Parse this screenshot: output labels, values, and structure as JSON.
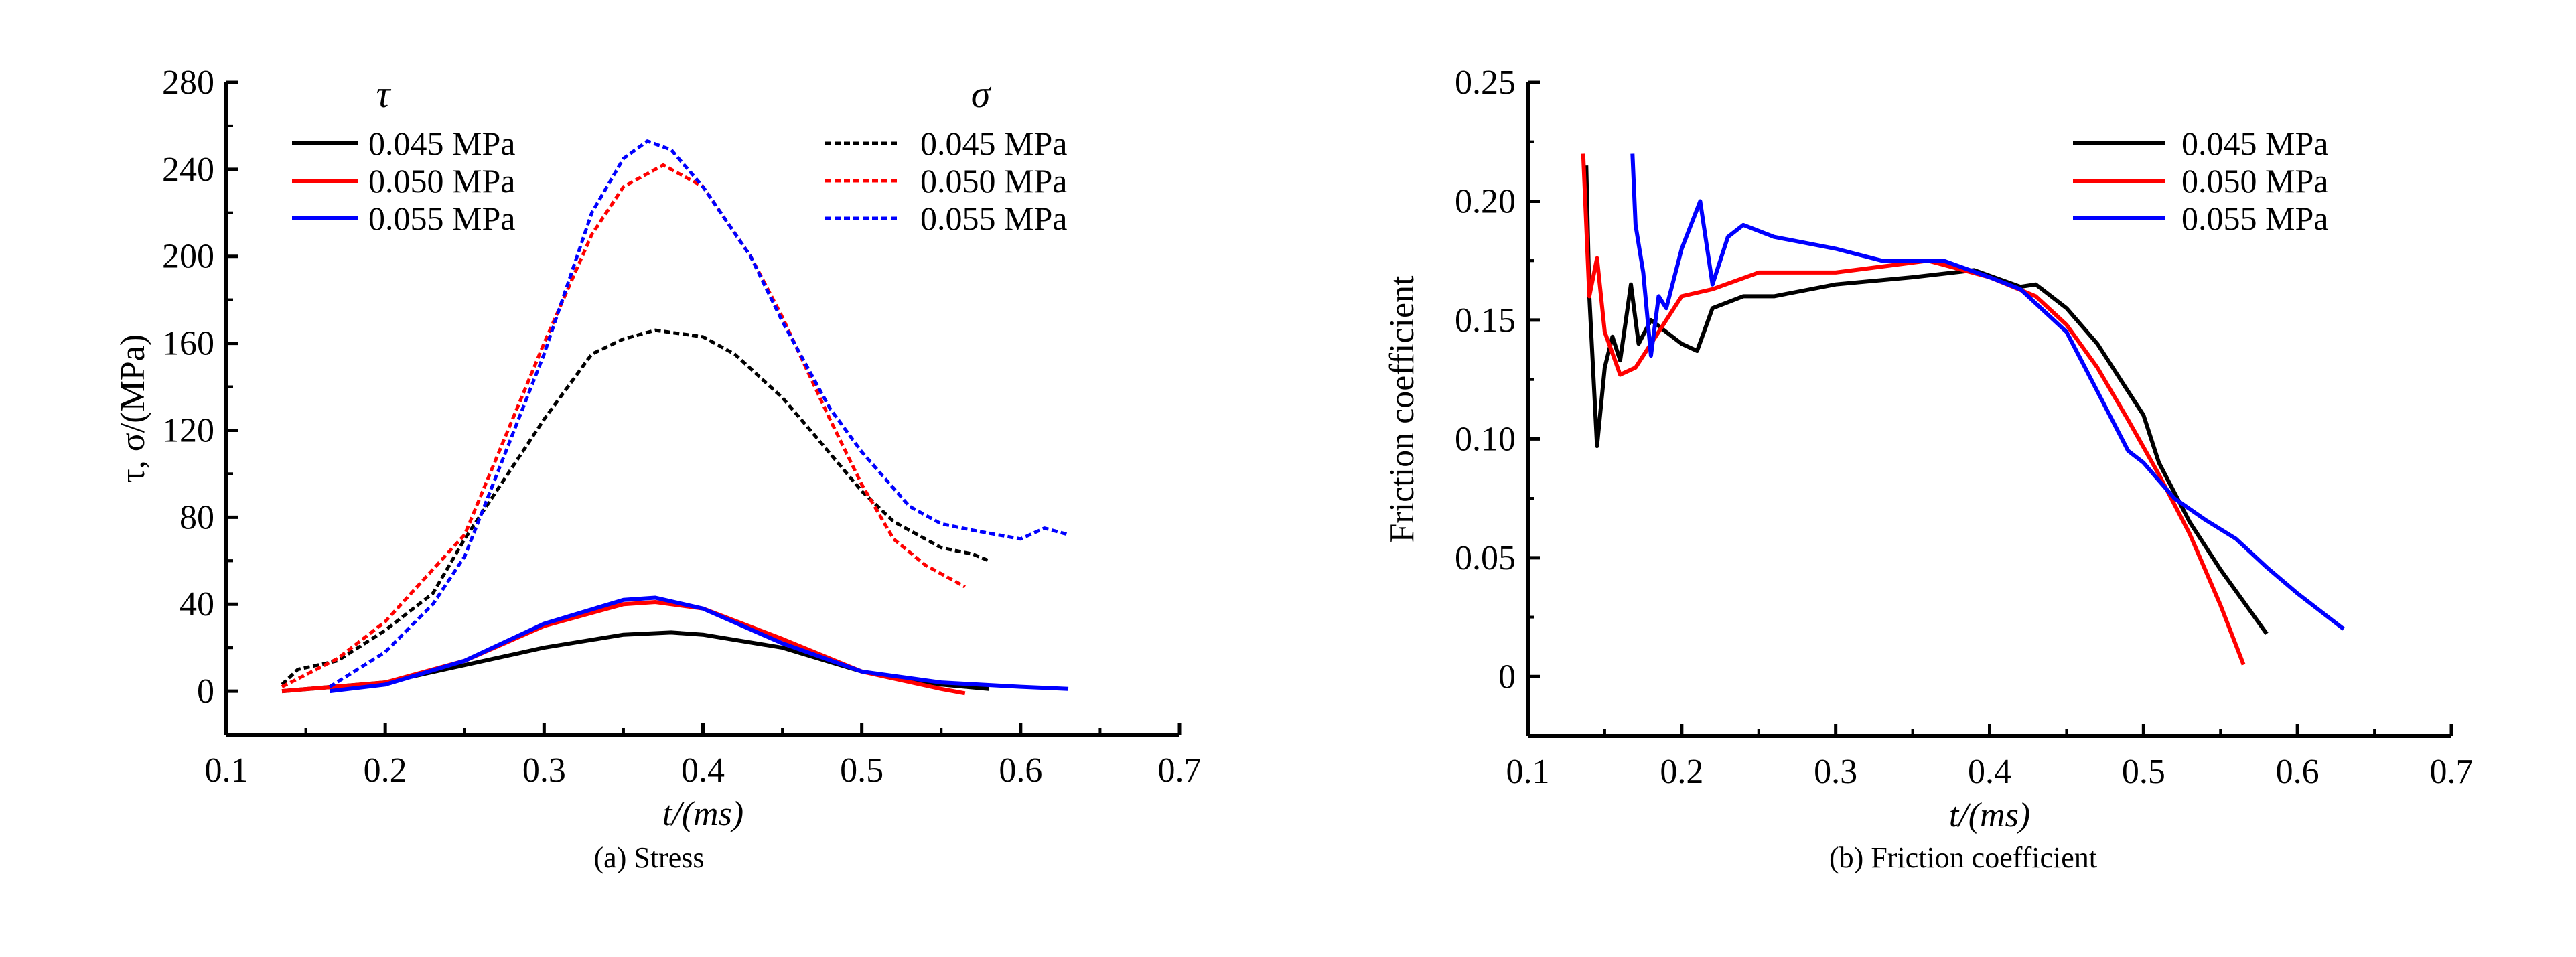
{
  "chart_data": [
    {
      "type": "line",
      "caption": "(a) Stress",
      "xlabel": "t/(ms)",
      "ylabel": "τ, σ/(MPa)",
      "xlim": [
        0.1,
        0.7
      ],
      "ylim": [
        -20,
        280
      ],
      "xticks": [
        "0.1",
        "0.2",
        "0.3",
        "0.4",
        "0.5",
        "0.6",
        "0.7"
      ],
      "xtick_values": [
        0.1,
        0.2,
        0.3,
        0.4,
        0.5,
        0.6,
        0.7
      ],
      "yticks": [
        "0",
        "40",
        "80",
        "120",
        "160",
        "200",
        "240",
        "280"
      ],
      "ytick_values": [
        0,
        40,
        80,
        120,
        160,
        200,
        240,
        280
      ],
      "legend_groups": [
        {
          "header": "τ",
          "style": "solid"
        },
        {
          "header": "σ",
          "style": "dashed"
        }
      ],
      "series": [
        {
          "name": "0.045 MPa",
          "group": "τ",
          "color": "#000000",
          "dash": false,
          "x": [
            0.135,
            0.2,
            0.25,
            0.3,
            0.35,
            0.38,
            0.4,
            0.45,
            0.5,
            0.55,
            0.58
          ],
          "y": [
            0,
            4,
            12,
            20,
            26,
            27,
            26,
            20,
            9,
            3,
            1
          ]
        },
        {
          "name": "0.050 MPa",
          "group": "τ",
          "color": "#ff0000",
          "dash": false,
          "x": [
            0.135,
            0.2,
            0.25,
            0.3,
            0.35,
            0.37,
            0.4,
            0.45,
            0.5,
            0.55,
            0.565
          ],
          "y": [
            0,
            4,
            14,
            30,
            40,
            41,
            38,
            24,
            9,
            1,
            -1
          ]
        },
        {
          "name": "0.055 MPa",
          "group": "τ",
          "color": "#0000ff",
          "dash": false,
          "x": [
            0.165,
            0.2,
            0.25,
            0.3,
            0.35,
            0.37,
            0.4,
            0.45,
            0.5,
            0.55,
            0.6,
            0.63
          ],
          "y": [
            0,
            3,
            14,
            31,
            42,
            43,
            38,
            22,
            9,
            4,
            2,
            1
          ]
        },
        {
          "name": "0.045 MPa",
          "group": "σ",
          "color": "#000000",
          "dash": true,
          "x": [
            0.135,
            0.145,
            0.17,
            0.2,
            0.23,
            0.25,
            0.3,
            0.33,
            0.35,
            0.37,
            0.4,
            0.42,
            0.45,
            0.47,
            0.5,
            0.52,
            0.55,
            0.57,
            0.58
          ],
          "y": [
            3,
            10,
            14,
            28,
            45,
            70,
            125,
            155,
            162,
            166,
            163,
            155,
            135,
            118,
            92,
            78,
            66,
            63,
            60
          ]
        },
        {
          "name": "0.050 MPa",
          "group": "σ",
          "color": "#ff0000",
          "dash": true,
          "x": [
            0.135,
            0.17,
            0.2,
            0.25,
            0.3,
            0.33,
            0.35,
            0.375,
            0.4,
            0.43,
            0.45,
            0.48,
            0.5,
            0.52,
            0.54,
            0.565
          ],
          "y": [
            2,
            15,
            32,
            72,
            160,
            210,
            232,
            242,
            232,
            200,
            172,
            125,
            95,
            70,
            58,
            48
          ]
        },
        {
          "name": "0.055 MPa",
          "group": "σ",
          "color": "#0000ff",
          "dash": true,
          "x": [
            0.165,
            0.2,
            0.23,
            0.25,
            0.3,
            0.33,
            0.35,
            0.365,
            0.38,
            0.4,
            0.43,
            0.45,
            0.48,
            0.5,
            0.53,
            0.55,
            0.57,
            0.6,
            0.615,
            0.63
          ],
          "y": [
            2,
            18,
            40,
            62,
            155,
            220,
            245,
            253,
            249,
            232,
            200,
            170,
            130,
            110,
            85,
            77,
            74,
            70,
            75,
            72
          ]
        }
      ]
    },
    {
      "type": "line",
      "caption": "(b) Friction coefficient",
      "xlabel": "t/(ms)",
      "ylabel": "Friction coefficient",
      "xlim": [
        0.1,
        0.7
      ],
      "ylim": [
        -0.025,
        0.25
      ],
      "xticks": [
        "0.1",
        "0.2",
        "0.3",
        "0.4",
        "0.5",
        "0.6",
        "0.7"
      ],
      "xtick_values": [
        0.1,
        0.2,
        0.3,
        0.4,
        0.5,
        0.6,
        0.7
      ],
      "yticks": [
        "0",
        "0.05",
        "0.10",
        "0.15",
        "0.20",
        "0.25"
      ],
      "ytick_values": [
        0,
        0.05,
        0.1,
        0.15,
        0.2,
        0.25
      ],
      "series": [
        {
          "name": "0.045 MPa",
          "color": "#000000",
          "x": [
            0.138,
            0.14,
            0.145,
            0.15,
            0.155,
            0.16,
            0.167,
            0.172,
            0.18,
            0.19,
            0.2,
            0.21,
            0.22,
            0.24,
            0.26,
            0.3,
            0.35,
            0.39,
            0.42,
            0.43,
            0.45,
            0.47,
            0.49,
            0.5,
            0.51,
            0.53,
            0.55,
            0.57,
            0.58
          ],
          "y": [
            0.215,
            0.16,
            0.097,
            0.13,
            0.143,
            0.133,
            0.165,
            0.14,
            0.15,
            0.145,
            0.14,
            0.137,
            0.155,
            0.16,
            0.16,
            0.165,
            0.168,
            0.171,
            0.164,
            0.165,
            0.155,
            0.14,
            0.12,
            0.11,
            0.09,
            0.065,
            0.045,
            0.027,
            0.018
          ]
        },
        {
          "name": "0.050 MPa",
          "color": "#ff0000",
          "x": [
            0.136,
            0.14,
            0.145,
            0.15,
            0.16,
            0.17,
            0.18,
            0.19,
            0.2,
            0.22,
            0.25,
            0.3,
            0.36,
            0.4,
            0.43,
            0.45,
            0.47,
            0.49,
            0.51,
            0.53,
            0.55,
            0.565
          ],
          "y": [
            0.22,
            0.16,
            0.176,
            0.145,
            0.127,
            0.13,
            0.14,
            0.15,
            0.16,
            0.163,
            0.17,
            0.17,
            0.175,
            0.168,
            0.16,
            0.148,
            0.13,
            0.108,
            0.085,
            0.06,
            0.03,
            0.005
          ]
        },
        {
          "name": "0.055 MPa",
          "color": "#0000ff",
          "x": [
            0.168,
            0.17,
            0.175,
            0.18,
            0.185,
            0.19,
            0.2,
            0.212,
            0.22,
            0.23,
            0.24,
            0.26,
            0.3,
            0.33,
            0.37,
            0.4,
            0.42,
            0.45,
            0.47,
            0.49,
            0.5,
            0.52,
            0.54,
            0.56,
            0.58,
            0.6,
            0.62,
            0.63
          ],
          "y": [
            0.22,
            0.19,
            0.17,
            0.135,
            0.16,
            0.155,
            0.18,
            0.2,
            0.165,
            0.185,
            0.19,
            0.185,
            0.18,
            0.175,
            0.175,
            0.168,
            0.163,
            0.145,
            0.12,
            0.095,
            0.09,
            0.075,
            0.066,
            0.058,
            0.046,
            0.035,
            0.025,
            0.02
          ]
        }
      ]
    }
  ]
}
